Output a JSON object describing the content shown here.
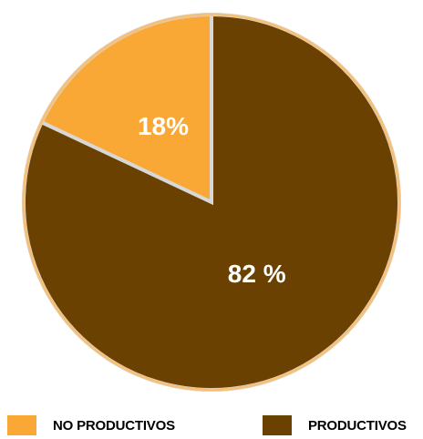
{
  "chart_data": {
    "type": "pie",
    "categories": [
      "NO PRODUCTIVOS",
      "PRODUCTIVOS"
    ],
    "values": [
      18,
      82
    ],
    "data_labels": [
      "18%",
      "82 %"
    ],
    "colors": [
      "#F9A836",
      "#6A4100"
    ],
    "outline_color": "#F5C07A",
    "separator_color": "#D8D8D8",
    "start": "12 o'clock",
    "direction": "counter-clockwise for NO PRODUCTIVOS",
    "legend": {
      "position": "bottom",
      "items": [
        {
          "label": "NO PRODUCTIVOS",
          "color": "#F9A836"
        },
        {
          "label": "PRODUCTIVOS",
          "color": "#6A4100"
        }
      ]
    }
  }
}
